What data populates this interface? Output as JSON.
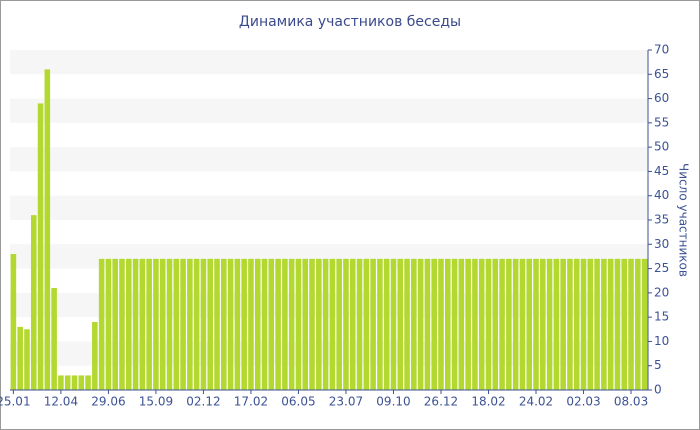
{
  "chart_data": {
    "type": "bar",
    "title": "Динамика участников беседы",
    "y_label": "Число участников",
    "categories": [
      "25.01",
      null,
      null,
      null,
      null,
      null,
      null,
      "12.04",
      null,
      null,
      null,
      null,
      null,
      null,
      "29.06",
      null,
      null,
      null,
      null,
      null,
      null,
      "15.09",
      null,
      null,
      null,
      null,
      null,
      null,
      "02.12",
      null,
      null,
      null,
      null,
      null,
      null,
      "17.02",
      null,
      null,
      null,
      null,
      null,
      null,
      "06.05",
      null,
      null,
      null,
      null,
      null,
      null,
      "23.07",
      null,
      null,
      null,
      null,
      null,
      null,
      "09.10",
      null,
      null,
      null,
      null,
      null,
      null,
      "26.12",
      null,
      null,
      null,
      null,
      null,
      null,
      "18.02",
      null,
      null,
      null,
      null,
      null,
      null,
      "24.02",
      null,
      null,
      null,
      null,
      null,
      null,
      "02.03",
      null,
      null,
      null,
      null,
      null,
      null,
      "08.03",
      null,
      null
    ],
    "values": [
      28,
      13,
      12.5,
      36,
      59,
      66,
      21,
      3,
      3,
      3,
      3,
      3,
      14,
      27,
      27,
      27,
      27,
      27,
      27,
      27,
      27,
      27,
      27,
      27,
      27,
      27,
      27,
      27,
      27,
      27,
      27,
      27,
      27,
      27,
      27,
      27,
      27,
      27,
      27,
      27,
      27,
      27,
      27,
      27,
      27,
      27,
      27,
      27,
      27,
      27,
      27,
      27,
      27,
      27,
      27,
      27,
      27,
      27,
      27,
      27,
      27,
      27,
      27,
      27,
      27,
      27,
      27,
      27,
      27,
      27,
      27,
      27,
      27,
      27,
      27,
      27,
      27,
      27,
      27,
      27,
      27,
      27,
      27,
      27,
      27,
      27,
      27,
      27,
      27,
      27,
      27,
      27,
      27,
      27
    ],
    "color": "#b3d930",
    "ylim": [
      0,
      70
    ],
    "yticks": [
      0,
      5,
      10,
      15,
      20,
      25,
      30,
      35,
      40,
      45,
      50,
      55,
      60,
      65,
      70
    ],
    "grid": true
  }
}
